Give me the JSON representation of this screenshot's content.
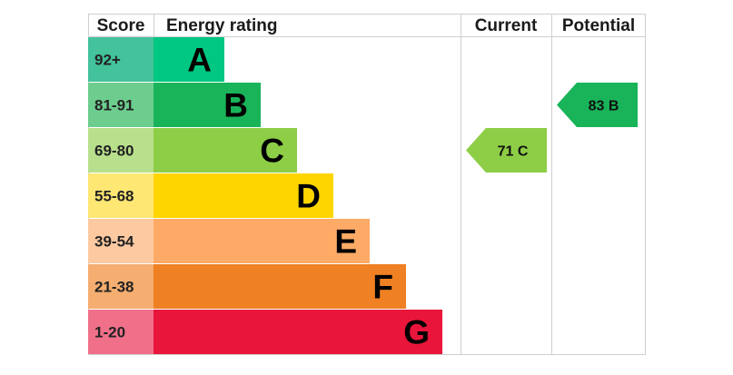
{
  "chart_data": {
    "type": "bar",
    "headers": {
      "score": "Score",
      "energy_rating": "Energy rating",
      "current": "Current",
      "potential": "Potential"
    },
    "bands": [
      {
        "score": "92+",
        "letter": "A",
        "bar_color": "#00c781",
        "score_color": "#43c29b"
      },
      {
        "score": "81-91",
        "letter": "B",
        "bar_color": "#19b459",
        "score_color": "#6ccd8e"
      },
      {
        "score": "69-80",
        "letter": "C",
        "bar_color": "#8dce46",
        "score_color": "#b8df8c"
      },
      {
        "score": "55-68",
        "letter": "D",
        "bar_color": "#ffd500",
        "score_color": "#ffe773"
      },
      {
        "score": "39-54",
        "letter": "E",
        "bar_color": "#fcaa65",
        "score_color": "#fdc9a0"
      },
      {
        "score": "21-38",
        "letter": "F",
        "bar_color": "#ef8023",
        "score_color": "#f5ad70"
      },
      {
        "score": "1-20",
        "letter": "G",
        "bar_color": "#e9153b",
        "score_color": "#f0708a"
      }
    ],
    "current": {
      "value": 71,
      "letter": "C",
      "label": "71 C",
      "color": "#8dce46"
    },
    "potential": {
      "value": 83,
      "letter": "B",
      "label": "83 B",
      "color": "#19b459"
    }
  }
}
